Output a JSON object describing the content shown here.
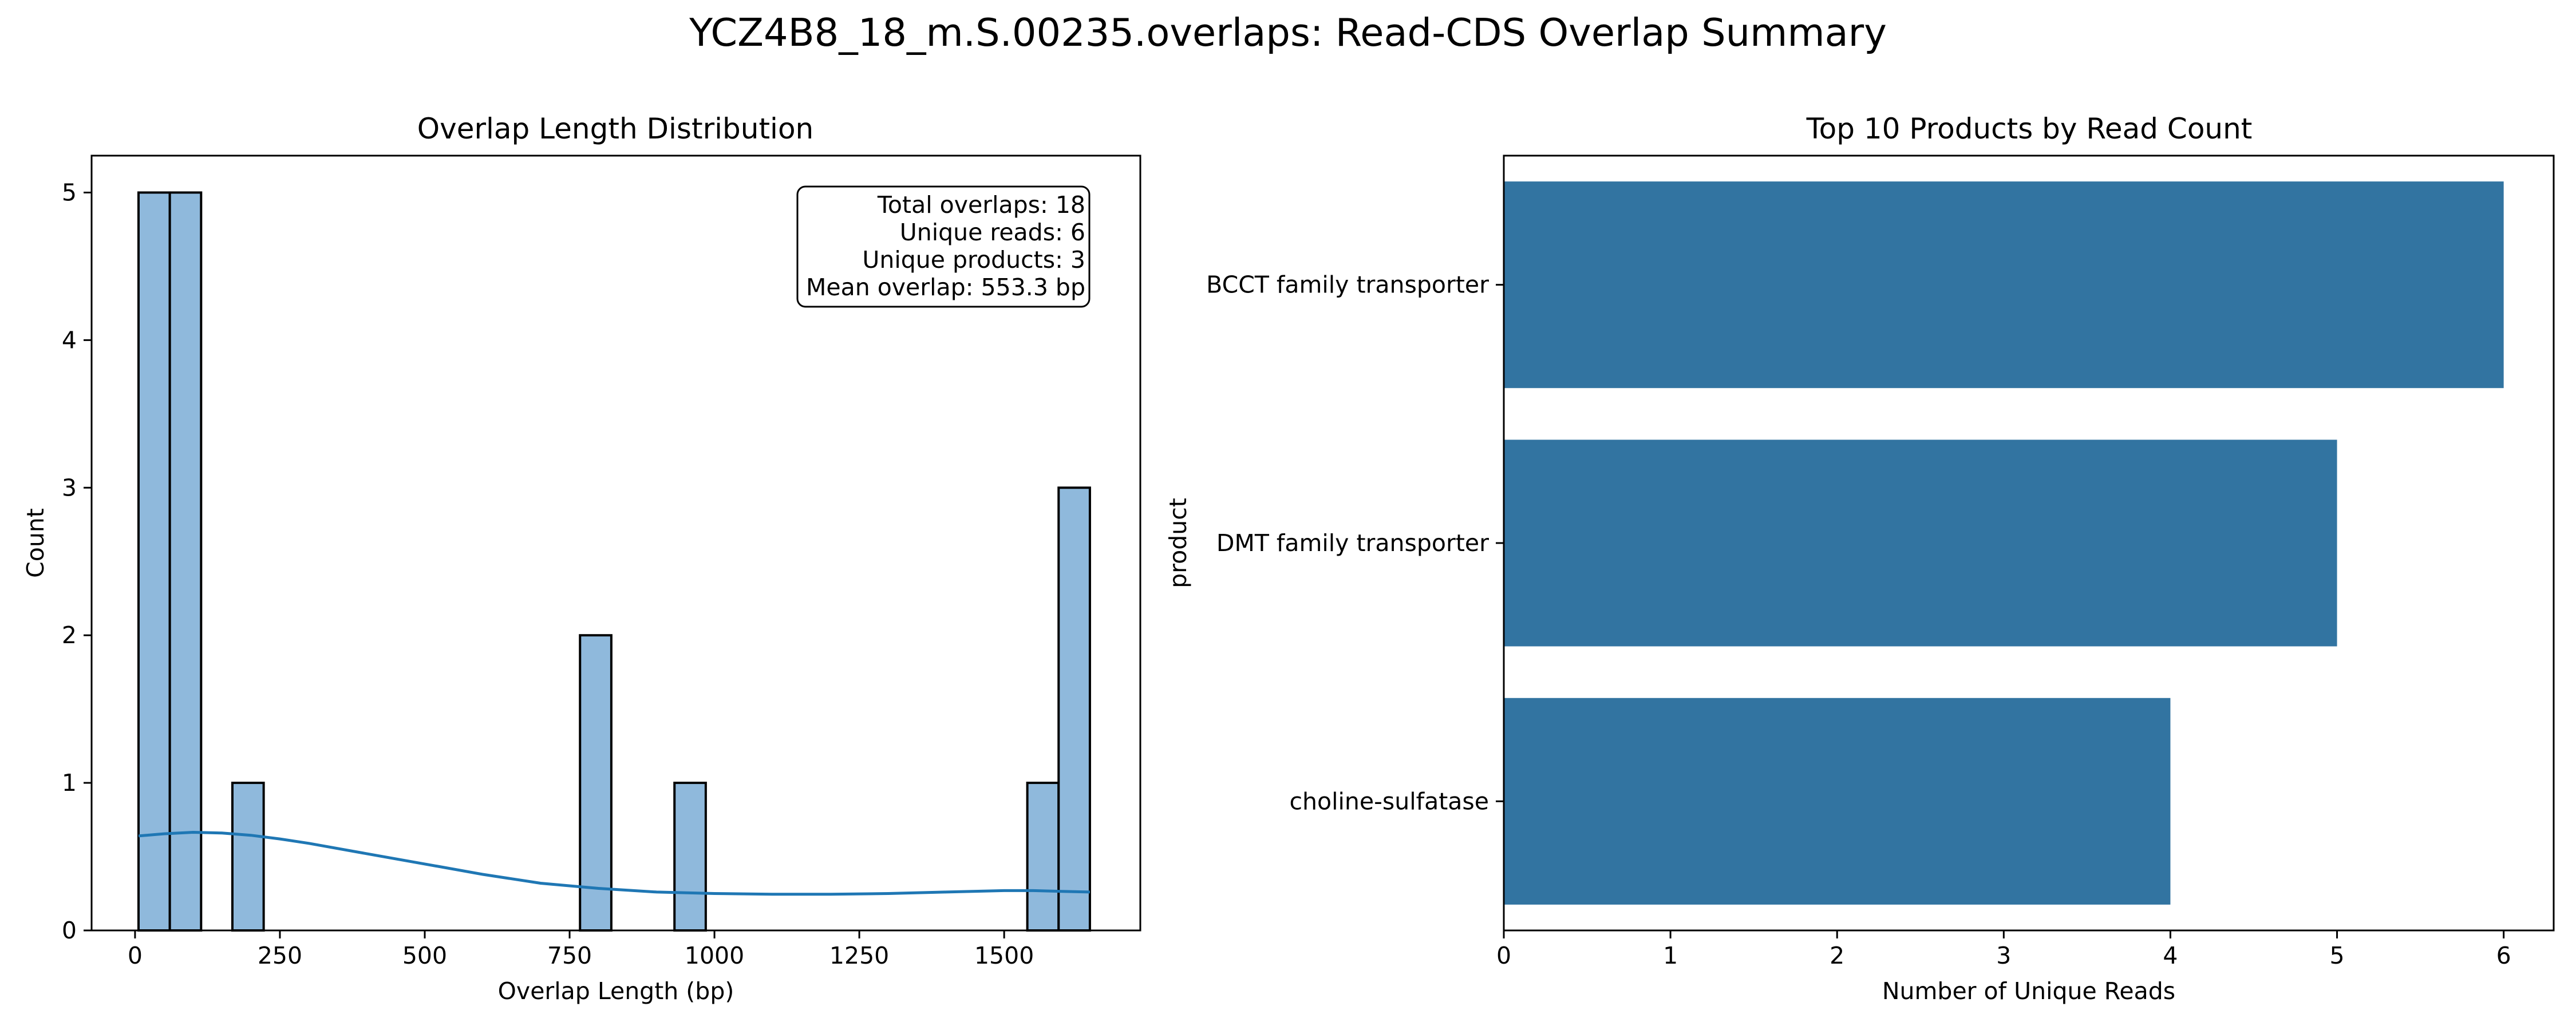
{
  "title": "YCZ4B8_18_m.S.00235.overlaps: Read-CDS Overlap Summary",
  "colors": {
    "hist_fill": "#8fb9dc",
    "kde_line": "#1f77b4",
    "bar_fill": "#3274a1"
  },
  "chart_data": [
    {
      "type": "bar",
      "subtype": "histogram_with_kde",
      "title": "Overlap Length Distribution",
      "xlabel": "Overlap Length (bp)",
      "ylabel": "Count",
      "xlim": [
        -75,
        1735
      ],
      "ylim": [
        0,
        5.25
      ],
      "xticks": [
        0,
        250,
        500,
        750,
        1000,
        1250,
        1500
      ],
      "yticks": [
        0,
        1,
        2,
        3,
        4,
        5
      ],
      "bins": [
        {
          "start": 6,
          "end": 60,
          "count": 5
        },
        {
          "start": 60,
          "end": 114,
          "count": 5
        },
        {
          "start": 168,
          "end": 222,
          "count": 1
        },
        {
          "start": 768,
          "end": 822,
          "count": 2
        },
        {
          "start": 931,
          "end": 985,
          "count": 1
        },
        {
          "start": 1540,
          "end": 1594,
          "count": 1
        },
        {
          "start": 1594,
          "end": 1648,
          "count": 3
        }
      ],
      "kde": {
        "x": [
          6,
          50,
          100,
          150,
          200,
          250,
          300,
          400,
          500,
          600,
          700,
          800,
          900,
          1000,
          1100,
          1200,
          1300,
          1400,
          1500,
          1550,
          1600,
          1648
        ],
        "y": [
          0.64,
          0.655,
          0.665,
          0.66,
          0.645,
          0.62,
          0.59,
          0.52,
          0.45,
          0.38,
          0.32,
          0.285,
          0.26,
          0.25,
          0.245,
          0.245,
          0.25,
          0.26,
          0.27,
          0.27,
          0.265,
          0.26
        ]
      },
      "annotation": [
        "Total overlaps: 18",
        "Unique reads: 6",
        "Unique products: 3",
        "Mean overlap: 553.3 bp"
      ],
      "grid": false
    },
    {
      "type": "bar",
      "orientation": "horizontal",
      "title": "Top 10 Products by Read Count",
      "xlabel": "Number of Unique Reads",
      "ylabel": "product",
      "categories": [
        "BCCT family transporter",
        "DMT family transporter",
        "choline-sulfatase"
      ],
      "values": [
        6,
        5,
        4
      ],
      "xlim": [
        0,
        6.3
      ],
      "xticks": [
        0,
        1,
        2,
        3,
        4,
        5,
        6
      ],
      "grid": false
    }
  ]
}
